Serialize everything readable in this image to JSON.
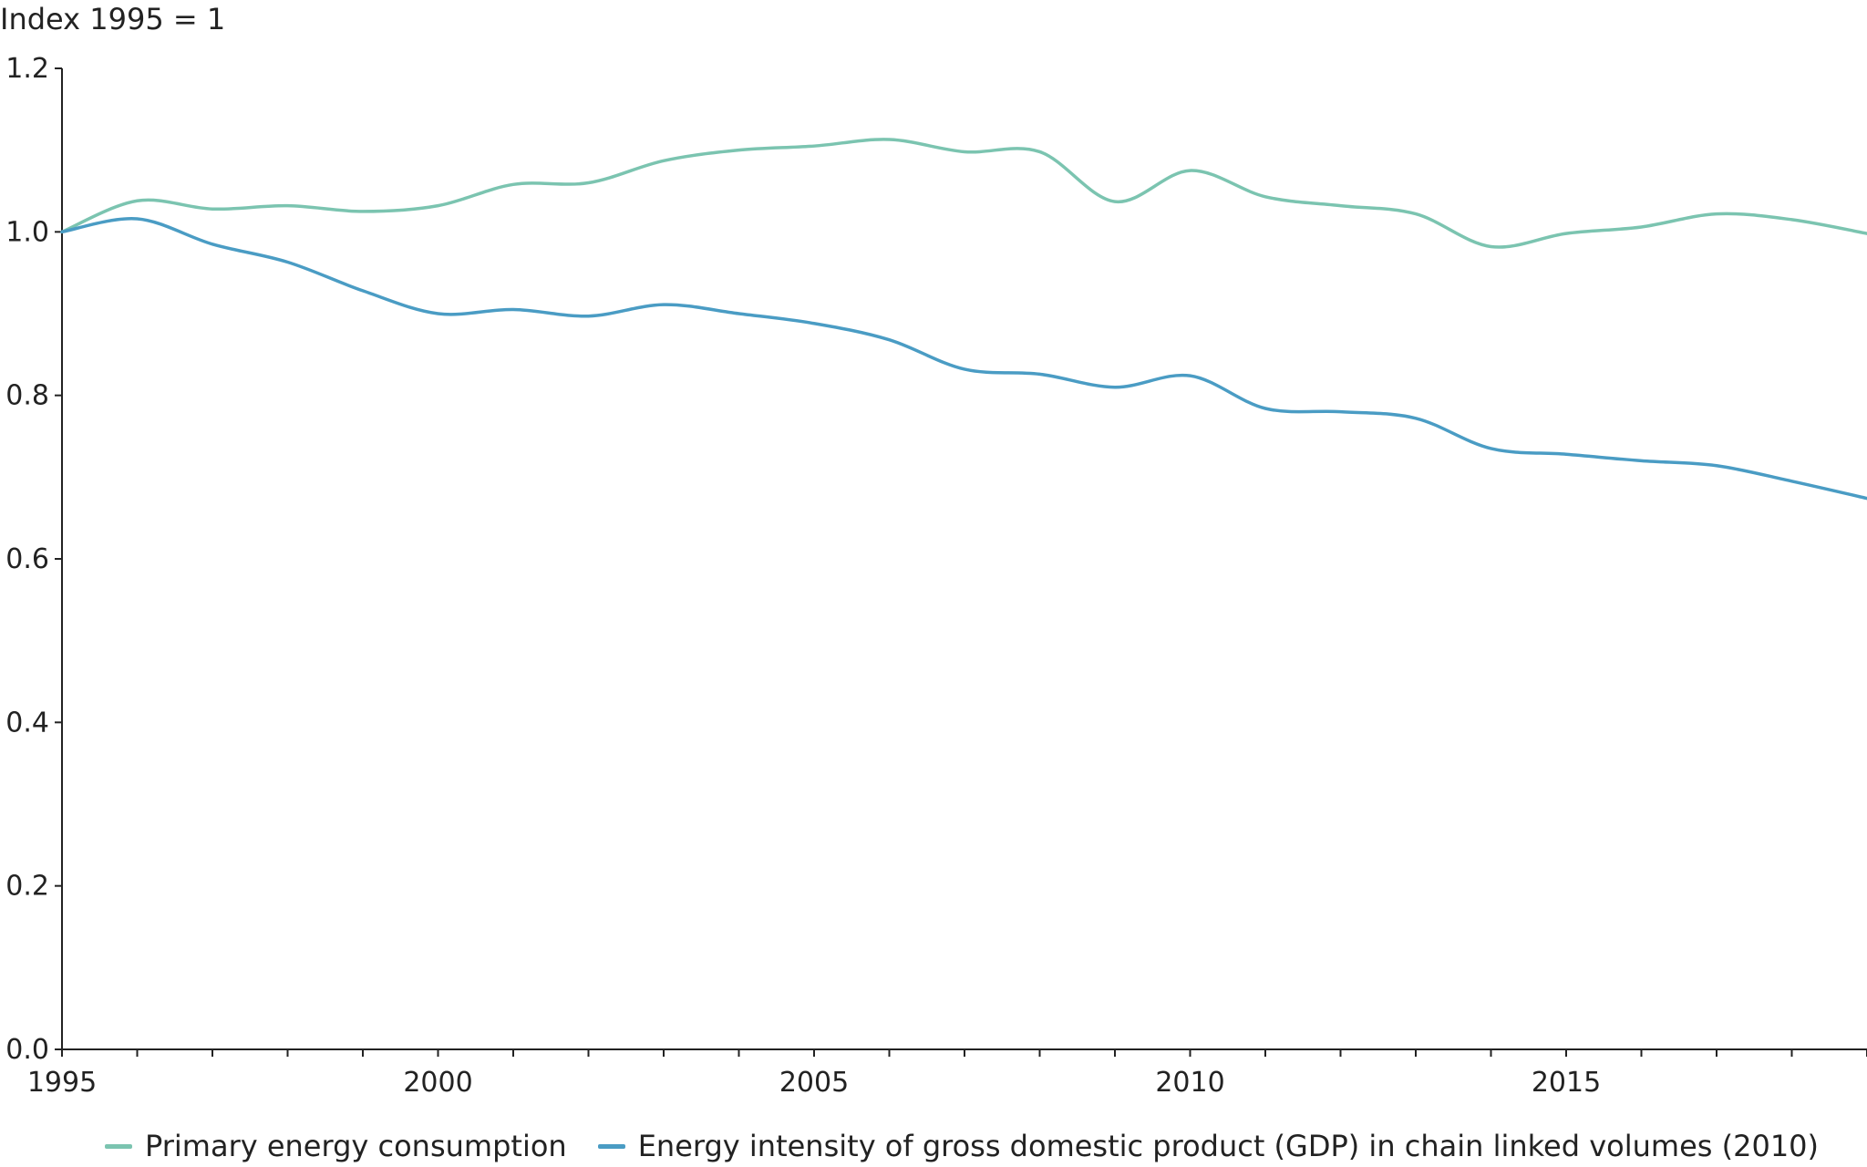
{
  "chart_data": {
    "type": "line",
    "title": "",
    "ylabel": "Index 1995 = 1",
    "xlabel": "",
    "xlim": [
      1995,
      2019
    ],
    "ylim": [
      0,
      1.2
    ],
    "yticks": [
      0.0,
      0.2,
      0.4,
      0.6,
      0.8,
      1.0,
      1.2
    ],
    "ytick_labels": [
      "0.0",
      "0.2",
      "0.4",
      "0.6",
      "0.8",
      "1.0",
      "1.2"
    ],
    "xticks": [
      1995,
      2000,
      2005,
      2010,
      2015
    ],
    "xtick_labels": [
      "1995",
      "2000",
      "2005",
      "2010",
      "2015"
    ],
    "x": [
      1995,
      1996,
      1997,
      1998,
      1999,
      2000,
      2001,
      2002,
      2003,
      2004,
      2005,
      2006,
      2007,
      2008,
      2009,
      2010,
      2011,
      2012,
      2013,
      2014,
      2015,
      2016,
      2017,
      2018,
      2019
    ],
    "series": [
      {
        "name": "Primary energy consumption",
        "color": "#7bc4b0",
        "values": [
          1.0,
          1.038,
          1.028,
          1.032,
          1.025,
          1.032,
          1.058,
          1.06,
          1.087,
          1.1,
          1.105,
          1.113,
          1.098,
          1.098,
          1.037,
          1.075,
          1.043,
          1.032,
          1.022,
          0.982,
          0.998,
          1.006,
          1.022,
          1.015,
          0.998
        ]
      },
      {
        "name": "Energy intensity of gross domestic product (GDP) in chain linked volumes (2010)",
        "color": "#4a9cc4",
        "values": [
          1.0,
          1.016,
          0.985,
          0.963,
          0.928,
          0.9,
          0.905,
          0.897,
          0.911,
          0.9,
          0.888,
          0.868,
          0.832,
          0.826,
          0.81,
          0.824,
          0.784,
          0.78,
          0.772,
          0.735,
          0.728,
          0.72,
          0.714,
          0.695,
          0.674
        ]
      }
    ],
    "grid": false,
    "legend_position": "bottom"
  }
}
